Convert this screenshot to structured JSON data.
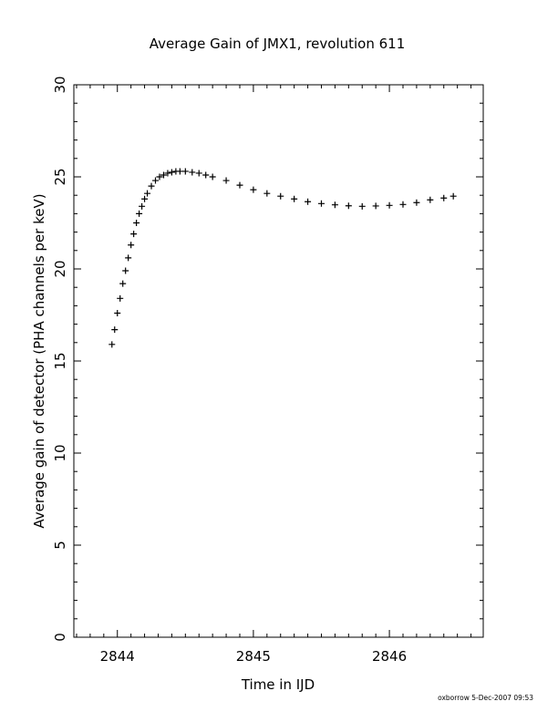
{
  "chart_data": {
    "type": "scatter",
    "title": "Average Gain of JMX1, revolution 611",
    "xlabel": "Time in IJD",
    "ylabel": "Average gain of detector (PHA channels per keV)",
    "xlim": [
      2843.68,
      2846.69
    ],
    "ylim": [
      0,
      30
    ],
    "x_ticks": [
      2844,
      2845,
      2846
    ],
    "x_tick_labels": [
      "2844",
      "2845",
      "2846"
    ],
    "y_ticks": [
      0,
      5,
      10,
      15,
      20,
      25,
      30
    ],
    "y_tick_labels": [
      "0",
      "5",
      "10",
      "15",
      "20",
      "25",
      "30"
    ],
    "grid": false,
    "marker": "+",
    "series": [
      {
        "color": "#000000",
        "x": [
          2843.96,
          2843.98,
          2844.0,
          2844.02,
          2844.04,
          2844.06,
          2844.08,
          2844.1,
          2844.12,
          2844.14,
          2844.16,
          2844.18,
          2844.2,
          2844.22,
          2844.25,
          2844.28,
          2844.31,
          2844.34,
          2844.37,
          2844.4,
          2844.43,
          2844.46,
          2844.5,
          2844.55,
          2844.6,
          2844.65,
          2844.7,
          2844.8,
          2844.9,
          2845.0,
          2845.1,
          2845.2,
          2845.3,
          2845.4,
          2845.5,
          2845.6,
          2845.7,
          2845.8,
          2845.9,
          2846.0,
          2846.1,
          2846.2,
          2846.3,
          2846.4,
          2846.47
        ],
        "y": [
          15.9,
          16.7,
          17.6,
          18.4,
          19.2,
          19.9,
          20.6,
          21.3,
          21.9,
          22.5,
          23.0,
          23.4,
          23.8,
          24.1,
          24.5,
          24.8,
          25.0,
          25.1,
          25.2,
          25.25,
          25.3,
          25.3,
          25.3,
          25.25,
          25.2,
          25.1,
          25.0,
          24.8,
          24.55,
          24.3,
          24.1,
          23.95,
          23.8,
          23.65,
          23.55,
          23.48,
          23.43,
          23.4,
          23.42,
          23.45,
          23.5,
          23.6,
          23.75,
          23.85,
          23.95
        ]
      }
    ]
  },
  "footer": {
    "credit": "oxborrow  5-Dec-2007 09:53"
  }
}
